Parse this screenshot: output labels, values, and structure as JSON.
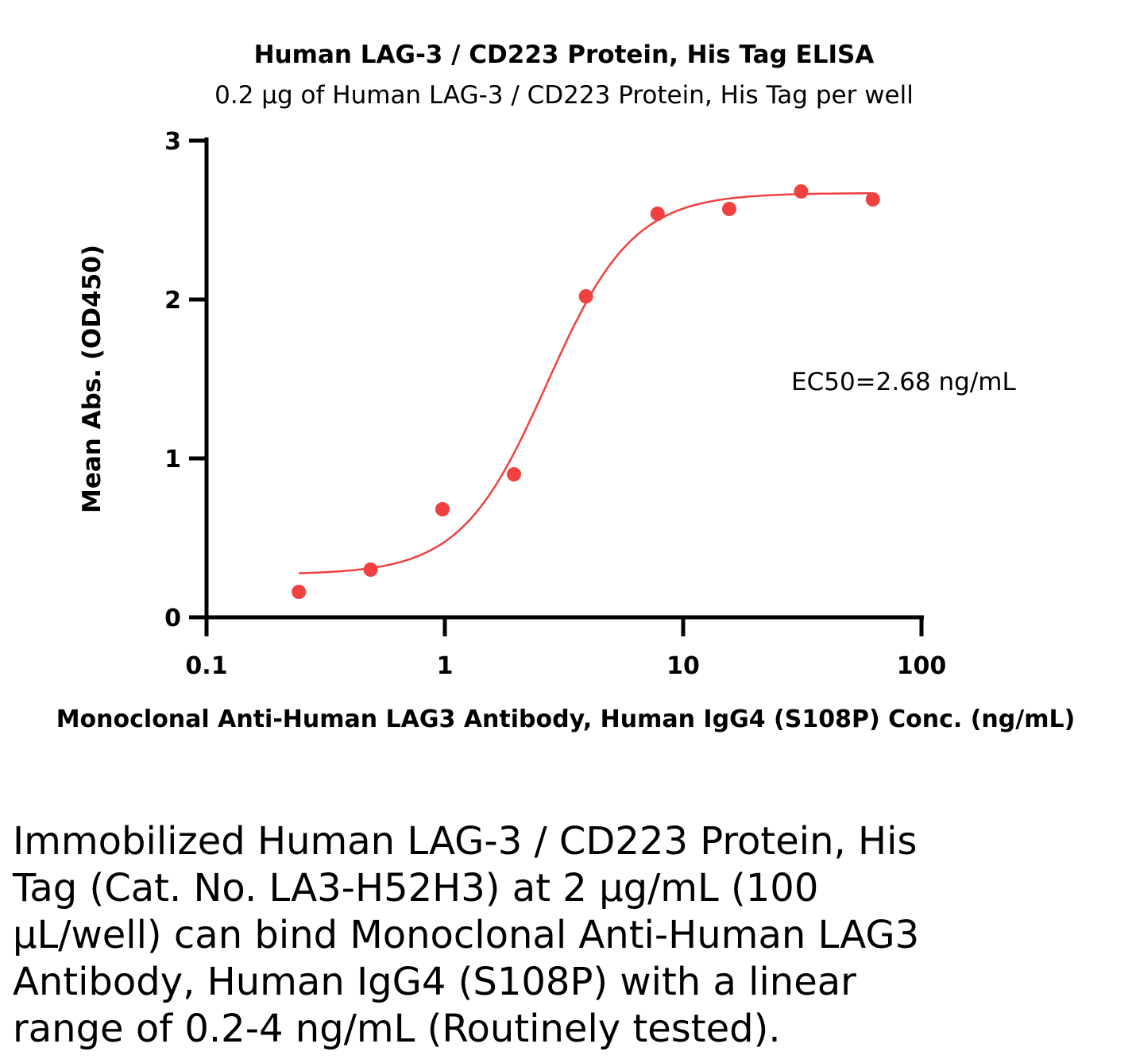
{
  "chart_data": {
    "type": "scatter",
    "title": "Human LAG-3 / CD223 Protein, His Tag ELISA",
    "subtitle": "0.2 µg of Human LAG-3 / CD223 Protein, His Tag per well",
    "xlabel": "Monoclonal Anti-Human LAG3 Antibody, Human IgG4 (S108P) Conc. (ng/mL)",
    "ylabel": "Mean Abs. (OD450)",
    "xscale": "log",
    "xlim": [
      0.1,
      100
    ],
    "ylim": [
      0,
      3
    ],
    "xticks": [
      "0.1",
      "1",
      "10",
      "100"
    ],
    "xtick_values": [
      0.1,
      1,
      10,
      100
    ],
    "yticks": [
      "0",
      "1",
      "2",
      "3"
    ],
    "ytick_values": [
      0,
      1,
      2,
      3
    ],
    "grid": false,
    "series": [
      {
        "name": "ELISA",
        "color": "#f04040",
        "x": [
          0.244,
          0.488,
          0.977,
          1.95,
          3.91,
          7.81,
          15.6,
          31.25,
          62.5
        ],
        "y": [
          0.16,
          0.3,
          0.68,
          0.9,
          2.02,
          2.54,
          2.57,
          2.68,
          2.63
        ]
      }
    ],
    "fit": {
      "model": "4PL",
      "bottom": 0.27,
      "top": 2.67,
      "ec50": 2.68,
      "hill": 2.4,
      "x_range": [
        0.244,
        62.5
      ]
    },
    "annotation": "EC50=2.68 ng/mL"
  },
  "caption": "Immobilized Human LAG-3 / CD223 Protein, His Tag (Cat. No. LA3-H52H3) at 2 µg/mL (100 µL/well) can bind Monoclonal Anti-Human LAG3 Antibody, Human IgG4 (S108P) with a linear range of 0.2-4 ng/mL (Routinely tested)."
}
